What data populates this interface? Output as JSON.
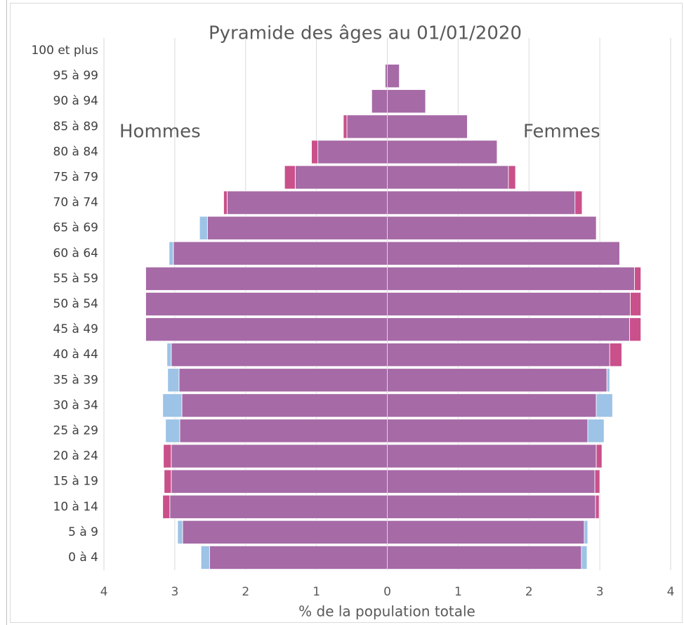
{
  "chart_data": {
    "type": "pyramid",
    "title": "Pyramide des âges au 01/01/2020",
    "left_label": "Hommes",
    "right_label": "Femmes",
    "x_label": "% de la population totale",
    "categories": [
      "0 à 4",
      "5 à 9",
      "10 à 14",
      "15 à 19",
      "20 à 24",
      "25 à 29",
      "30 à 34",
      "35 à 39",
      "40 à 44",
      "45 à 49",
      "50 à 54",
      "55 à 59",
      "60 à 64",
      "65 à 69",
      "70 à 74",
      "75 à 79",
      "80 à 84",
      "85 à 89",
      "90 à 94",
      "95 à 99",
      "100 et plus"
    ],
    "series": [
      {
        "color": "#a66aa6",
        "values": [
          -2.51,
          -2.89,
          -3.07,
          -3.05,
          -3.05,
          -2.93,
          -2.9,
          -2.94,
          -3.05,
          -3.41,
          -3.41,
          -3.41,
          -3.02,
          -2.54,
          -2.26,
          -1.3,
          -0.98,
          -0.57,
          -0.22,
          -0.03,
          0
        ]
      },
      {
        "color": "#c9508a",
        "values": [
          0,
          0,
          -0.1,
          -0.1,
          -0.11,
          0,
          0,
          0,
          0,
          0,
          0,
          0,
          0,
          0,
          -0.05,
          -0.15,
          -0.09,
          -0.05,
          0,
          0,
          0
        ]
      },
      {
        "color": "#9dc3e6",
        "values": [
          -0.12,
          -0.07,
          0,
          0,
          0,
          -0.2,
          -0.27,
          -0.16,
          -0.06,
          0,
          0,
          0,
          -0.06,
          -0.11,
          0,
          0,
          0,
          0,
          0,
          0,
          0
        ]
      },
      {
        "color": "#a66aa6",
        "values": [
          2.74,
          2.78,
          2.94,
          2.93,
          2.95,
          2.83,
          2.95,
          3.1,
          3.14,
          3.42,
          3.43,
          3.49,
          3.28,
          2.95,
          2.65,
          1.71,
          1.55,
          1.13,
          0.54,
          0.17,
          0
        ]
      },
      {
        "color": "#c9508a",
        "values": [
          0,
          0,
          0.05,
          0.07,
          0.08,
          0,
          0,
          0,
          0.17,
          0.16,
          0.15,
          0.09,
          0,
          0,
          0.1,
          0.1,
          0,
          0,
          0,
          0,
          0
        ]
      },
      {
        "color": "#9dc3e6",
        "values": [
          0.08,
          0.05,
          0,
          0,
          0,
          0.23,
          0.23,
          0.04,
          0,
          0,
          0,
          0,
          0,
          0,
          0,
          0,
          0,
          0,
          0,
          0,
          0
        ]
      }
    ],
    "xlim": [
      -4,
      4
    ],
    "xticks": [
      {
        "value": -4,
        "label": "4"
      },
      {
        "value": -3,
        "label": "3"
      },
      {
        "value": -2,
        "label": "2"
      },
      {
        "value": -1,
        "label": "1"
      },
      0,
      1,
      2,
      3,
      4
    ],
    "grid": true
  }
}
